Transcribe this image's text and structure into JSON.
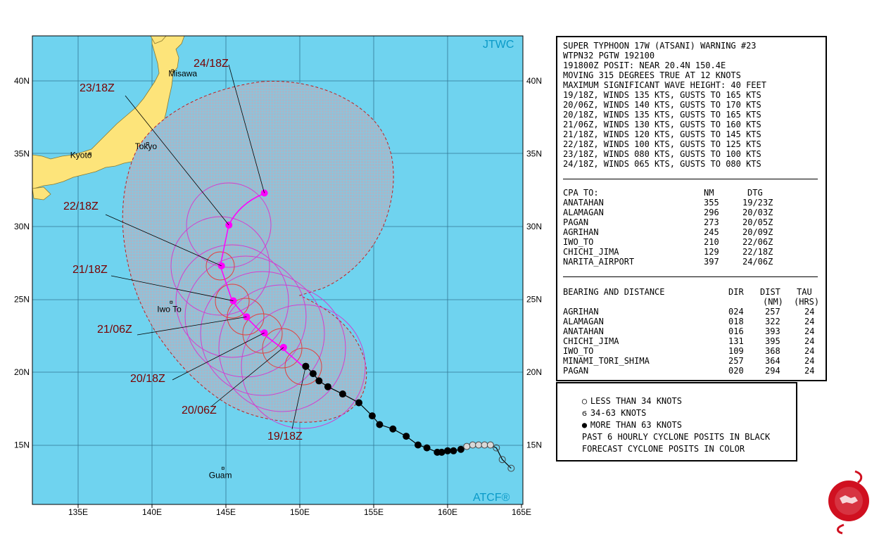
{
  "map": {
    "label_top_right": "JTWC",
    "label_bottom_right": "ATCF®",
    "lon_ticks": [
      "135E",
      "140E",
      "145E",
      "150E",
      "155E",
      "160E",
      "165E"
    ],
    "lat_ticks": [
      "40N",
      "35N",
      "30N",
      "25N",
      "20N",
      "15N"
    ],
    "places": [
      {
        "name": "Misawa",
        "lon": 141.4,
        "lat": 40.7
      },
      {
        "name": "Tokyo",
        "lon": 139.7,
        "lat": 35.7
      },
      {
        "name": "Kyoto",
        "lon": 135.8,
        "lat": 35.0
      },
      {
        "name": "Iwo To",
        "lon": 141.3,
        "lat": 24.8
      },
      {
        "name": "Guam",
        "lon": 144.8,
        "lat": 13.4
      }
    ],
    "forecast_points": [
      {
        "label": "19/18Z",
        "lon": 150.4,
        "lat": 20.4
      },
      {
        "label": "20/06Z",
        "lon": 148.9,
        "lat": 21.7
      },
      {
        "label": "20/18Z",
        "lon": 147.6,
        "lat": 22.7
      },
      {
        "label": "21/06Z",
        "lon": 146.4,
        "lat": 23.8
      },
      {
        "label": "21/18Z",
        "lon": 145.5,
        "lat": 24.9
      },
      {
        "label": "22/18Z",
        "lon": 144.7,
        "lat": 27.3
      },
      {
        "label": "23/18Z",
        "lon": 145.2,
        "lat": 30.1
      },
      {
        "label": "24/18Z",
        "lon": 147.6,
        "lat": 32.3
      }
    ],
    "past_track_black": [
      {
        "lon": 150.4,
        "lat": 20.4
      },
      {
        "lon": 150.9,
        "lat": 19.9
      },
      {
        "lon": 151.3,
        "lat": 19.4
      },
      {
        "lon": 151.9,
        "lat": 19.0
      },
      {
        "lon": 152.9,
        "lat": 18.5
      },
      {
        "lon": 154.0,
        "lat": 17.9
      },
      {
        "lon": 154.9,
        "lat": 17.0
      },
      {
        "lon": 155.4,
        "lat": 16.4
      },
      {
        "lon": 156.3,
        "lat": 16.1
      },
      {
        "lon": 157.2,
        "lat": 15.6
      },
      {
        "lon": 158.0,
        "lat": 15.0
      },
      {
        "lon": 158.6,
        "lat": 14.8
      },
      {
        "lon": 159.3,
        "lat": 14.5
      },
      {
        "lon": 159.6,
        "lat": 14.5
      },
      {
        "lon": 160.0,
        "lat": 14.6
      },
      {
        "lon": 160.4,
        "lat": 14.6
      },
      {
        "lon": 160.9,
        "lat": 14.7
      }
    ],
    "past_track_gray": [
      {
        "lon": 161.3,
        "lat": 14.9
      },
      {
        "lon": 161.7,
        "lat": 15.0
      },
      {
        "lon": 162.1,
        "lat": 15.0
      },
      {
        "lon": 162.5,
        "lat": 15.0
      },
      {
        "lon": 162.9,
        "lat": 15.0
      },
      {
        "lon": 163.3,
        "lat": 14.8
      },
      {
        "lon": 163.7,
        "lat": 14.0
      },
      {
        "lon": 164.3,
        "lat": 13.4
      }
    ]
  },
  "info": {
    "header_lines": [
      "SUPER TYPHOON 17W (ATSANI) WARNING #23",
      "WTPN32 PGTW 192100",
      "191800Z POSIT: NEAR 20.4N 150.4E",
      "MOVING 315 DEGREES TRUE AT 12 KNOTS",
      "MAXIMUM SIGNIFICANT WAVE HEIGHT: 40 FEET",
      "19/18Z, WINDS 135 KTS, GUSTS TO 165 KTS",
      "20/06Z, WINDS 140 KTS, GUSTS TO 170 KTS",
      "20/18Z, WINDS 135 KTS, GUSTS TO 165 KTS",
      "21/06Z, WINDS 130 KTS, GUSTS TO 160 KTS",
      "21/18Z, WINDS 120 KTS, GUSTS TO 145 KTS",
      "22/18Z, WINDS 100 KTS, GUSTS TO 125 KTS",
      "23/18Z, WINDS 080 KTS, GUSTS TO 100 KTS",
      "24/18Z, WINDS 065 KTS, GUSTS TO 080 KTS"
    ],
    "cpa": {
      "title": "CPA TO:",
      "col_nm": "NM",
      "col_dtg": "DTG",
      "rows": [
        {
          "place": "ANATAHAN",
          "nm": "355",
          "dtg": "19/23Z"
        },
        {
          "place": "ALAMAGAN",
          "nm": "296",
          "dtg": "20/03Z"
        },
        {
          "place": "PAGAN",
          "nm": "273",
          "dtg": "20/05Z"
        },
        {
          "place": "AGRIHAN",
          "nm": "245",
          "dtg": "20/09Z"
        },
        {
          "place": "IWO_TO",
          "nm": "210",
          "dtg": "22/06Z"
        },
        {
          "place": "CHICHI_JIMA",
          "nm": "129",
          "dtg": "22/18Z"
        },
        {
          "place": "NARITA_AIRPORT",
          "nm": "397",
          "dtg": "24/06Z"
        }
      ]
    },
    "bearing": {
      "title": "BEARING AND DISTANCE",
      "col_dir": "DIR",
      "col_dist": "DIST",
      "col_tau": "TAU",
      "sub_dist": "(NM)",
      "sub_tau": "(HRS)",
      "rows": [
        {
          "place": "AGRIHAN",
          "dir": "024",
          "dist": "257",
          "tau": "24"
        },
        {
          "place": "ALAMAGAN",
          "dir": "018",
          "dist": "322",
          "tau": "24"
        },
        {
          "place": "ANATAHAN",
          "dir": "016",
          "dist": "393",
          "tau": "24"
        },
        {
          "place": "CHICHI_JIMA",
          "dir": "131",
          "dist": "395",
          "tau": "24"
        },
        {
          "place": "IWO_TO",
          "dir": "109",
          "dist": "368",
          "tau": "24"
        },
        {
          "place": "MINAMI_TORI_SHIMA",
          "dir": "257",
          "dist": "364",
          "tau": "24"
        },
        {
          "place": "PAGAN",
          "dir": "020",
          "dist": "294",
          "tau": "24"
        }
      ]
    }
  },
  "legend": {
    "rows": [
      {
        "text": "LESS THAN 34 KNOTS"
      },
      {
        "text": "34-63 KNOTS"
      },
      {
        "text": "MORE THAN 63 KNOTS"
      },
      {
        "text": "PAST 6 HOURLY CYCLONE POSITS IN BLACK"
      },
      {
        "text": "FORECAST CYCLONE POSITS IN COLOR"
      }
    ]
  },
  "colors": {
    "ocean": "#6fd3ef",
    "land": "#fde47a",
    "danger_fill": "#9aa8b8",
    "forecast": "#ff00ff",
    "wind34": "#d040d0",
    "wind64": "#e04040",
    "label": "#7a0000",
    "axis_text": "#000000",
    "corner_label": "#0a9ac8"
  }
}
